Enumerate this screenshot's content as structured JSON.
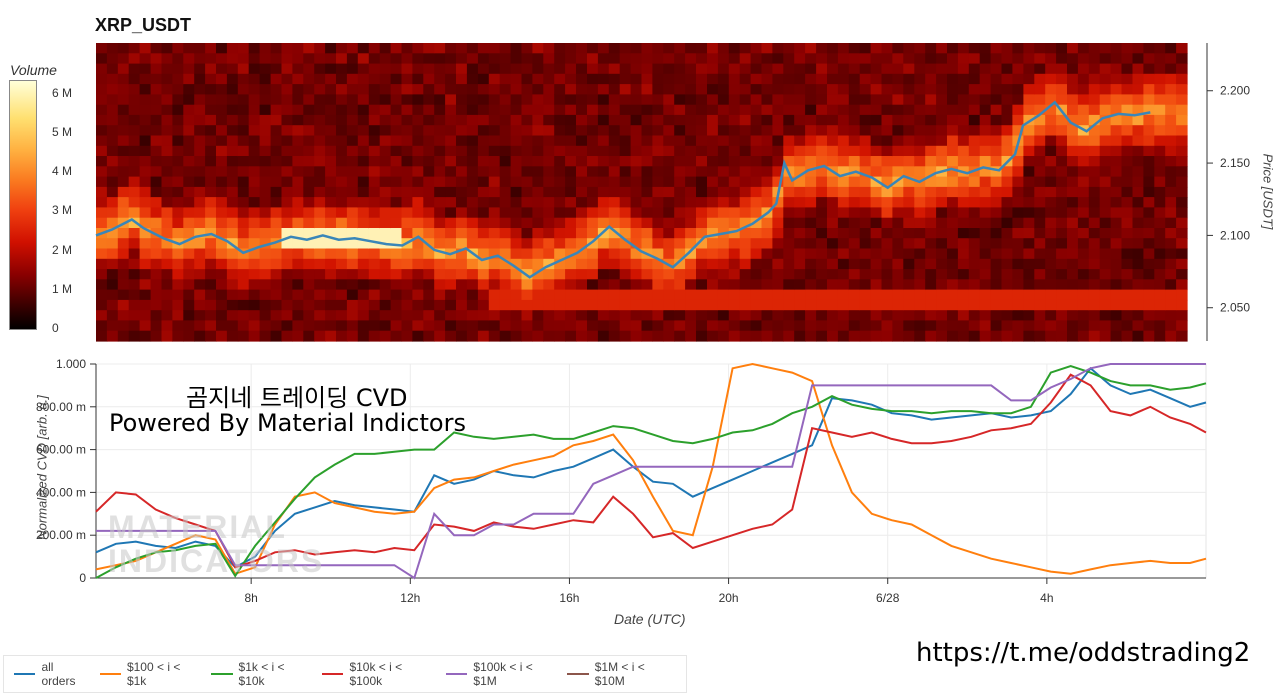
{
  "title": "XRP_USDT",
  "colorbar": {
    "label": "Volume",
    "ticks": [
      "0",
      "1 M",
      "2 M",
      "3 M",
      "4 M",
      "5 M",
      "6 M"
    ]
  },
  "overlay": {
    "line1": "곰지네 트레이딩 CVD",
    "line2": "Powered By Material Indictors"
  },
  "watermark": [
    "MATERIAL",
    "INDICATORS"
  ],
  "link": "https://t.me/oddstrading2",
  "chart_data": [
    {
      "type": "heatmap",
      "title": "XRP_USDT",
      "ylabel": "Price [USDT]",
      "colorbar_label": "Volume",
      "y_ticks": [
        "2.050",
        "2.100",
        "2.150",
        "2.200"
      ],
      "ylim": [
        2.027,
        2.233
      ],
      "price_series": {
        "x_hours": [
          4.1,
          4.5,
          5.0,
          5.3,
          5.8,
          6.2,
          6.6,
          7.0,
          7.4,
          7.8,
          8.2,
          8.6,
          9.0,
          9.4,
          9.8,
          10.2,
          10.6,
          11.0,
          11.4,
          11.8,
          12.2,
          12.6,
          13.0,
          13.4,
          13.8,
          14.2,
          14.6,
          15.0,
          15.4,
          15.8,
          16.2,
          16.6,
          17.0,
          17.4,
          17.8,
          18.2,
          18.6,
          19.0,
          19.4,
          19.8,
          20.2,
          20.6,
          21.0,
          21.2,
          21.4,
          21.6,
          22.0,
          22.4,
          22.8,
          23.2,
          23.6,
          24.0,
          24.4,
          24.8,
          25.2,
          25.6,
          26.0,
          26.4,
          26.8,
          27.2,
          27.4,
          27.8,
          28.2,
          28.6,
          29.0,
          29.4,
          29.8,
          30.2,
          30.6
        ],
        "price": [
          2.1,
          2.104,
          2.111,
          2.105,
          2.098,
          2.094,
          2.099,
          2.101,
          2.096,
          2.088,
          2.092,
          2.095,
          2.099,
          2.097,
          2.1,
          2.097,
          2.098,
          2.096,
          2.094,
          2.093,
          2.099,
          2.09,
          2.087,
          2.091,
          2.083,
          2.086,
          2.079,
          2.071,
          2.078,
          2.083,
          2.088,
          2.096,
          2.106,
          2.097,
          2.089,
          2.084,
          2.078,
          2.088,
          2.099,
          2.101,
          2.103,
          2.108,
          2.116,
          2.122,
          2.15,
          2.138,
          2.145,
          2.148,
          2.141,
          2.144,
          2.14,
          2.133,
          2.141,
          2.137,
          2.143,
          2.146,
          2.143,
          2.147,
          2.145,
          2.156,
          2.176,
          2.183,
          2.192,
          2.178,
          2.172,
          2.181,
          2.184,
          2.183,
          2.185
        ]
      }
    },
    {
      "type": "line",
      "xlabel": "Date (UTC)",
      "ylabel": "Normalized CVD [arb. u.]",
      "x_ticks": [
        "8h",
        "12h",
        "16h",
        "20h",
        "6/28",
        "4h"
      ],
      "y_ticks": [
        "0",
        "200.00 m",
        "400.00 m",
        "600.00 m",
        "800.00 m",
        "1.000"
      ],
      "ylim": [
        0,
        1.0
      ],
      "xlim_hours": [
        4.1,
        32.0
      ],
      "x_hours": [
        4.1,
        4.6,
        5.1,
        5.6,
        6.1,
        6.6,
        7.1,
        7.6,
        8.1,
        8.6,
        9.1,
        9.6,
        10.1,
        10.6,
        11.1,
        11.6,
        12.1,
        12.6,
        13.1,
        13.6,
        14.1,
        14.6,
        15.1,
        15.6,
        16.1,
        16.6,
        17.1,
        17.6,
        18.1,
        18.6,
        19.1,
        19.6,
        20.1,
        20.6,
        21.1,
        21.6,
        22.1,
        22.6,
        23.1,
        23.6,
        24.1,
        24.6,
        25.1,
        25.6,
        26.1,
        26.6,
        27.1,
        27.6,
        28.1,
        28.6,
        29.1,
        29.6,
        30.1,
        30.6,
        31.1,
        31.6,
        32.0
      ],
      "series": [
        {
          "name": "all orders",
          "color": "#1f77b4",
          "values": [
            0.12,
            0.16,
            0.17,
            0.15,
            0.14,
            0.17,
            0.15,
            0.05,
            0.1,
            0.22,
            0.3,
            0.33,
            0.36,
            0.34,
            0.33,
            0.32,
            0.31,
            0.48,
            0.44,
            0.46,
            0.5,
            0.48,
            0.47,
            0.5,
            0.52,
            0.56,
            0.6,
            0.52,
            0.45,
            0.44,
            0.38,
            0.42,
            0.46,
            0.5,
            0.54,
            0.58,
            0.62,
            0.84,
            0.83,
            0.81,
            0.77,
            0.76,
            0.74,
            0.75,
            0.76,
            0.77,
            0.75,
            0.76,
            0.78,
            0.86,
            0.98,
            0.9,
            0.86,
            0.88,
            0.84,
            0.8,
            0.82
          ]
        },
        {
          "name": "$100 < i < $1k",
          "color": "#ff7f0e",
          "values": [
            0.04,
            0.06,
            0.08,
            0.12,
            0.16,
            0.2,
            0.18,
            0.02,
            0.05,
            0.25,
            0.38,
            0.4,
            0.35,
            0.33,
            0.31,
            0.3,
            0.31,
            0.42,
            0.46,
            0.47,
            0.5,
            0.53,
            0.55,
            0.57,
            0.62,
            0.64,
            0.67,
            0.55,
            0.38,
            0.22,
            0.2,
            0.52,
            0.98,
            1.0,
            0.98,
            0.96,
            0.92,
            0.62,
            0.4,
            0.3,
            0.27,
            0.25,
            0.2,
            0.15,
            0.12,
            0.09,
            0.07,
            0.05,
            0.03,
            0.02,
            0.04,
            0.06,
            0.07,
            0.08,
            0.07,
            0.07,
            0.09
          ]
        },
        {
          "name": "$1k < i < $10k",
          "color": "#2ca02c",
          "values": [
            0.0,
            0.05,
            0.09,
            0.12,
            0.13,
            0.15,
            0.16,
            0.01,
            0.15,
            0.26,
            0.37,
            0.47,
            0.53,
            0.58,
            0.58,
            0.59,
            0.6,
            0.6,
            0.68,
            0.66,
            0.65,
            0.66,
            0.67,
            0.65,
            0.65,
            0.68,
            0.71,
            0.7,
            0.67,
            0.64,
            0.63,
            0.65,
            0.68,
            0.69,
            0.72,
            0.77,
            0.8,
            0.85,
            0.81,
            0.79,
            0.78,
            0.78,
            0.77,
            0.78,
            0.78,
            0.77,
            0.77,
            0.8,
            0.96,
            0.99,
            0.96,
            0.92,
            0.9,
            0.9,
            0.88,
            0.89,
            0.91
          ]
        },
        {
          "name": "$10k < i < $100k",
          "color": "#d62728",
          "values": [
            0.31,
            0.4,
            0.39,
            0.32,
            0.28,
            0.25,
            0.22,
            0.05,
            0.08,
            0.12,
            0.13,
            0.11,
            0.12,
            0.13,
            0.12,
            0.14,
            0.13,
            0.25,
            0.24,
            0.22,
            0.26,
            0.24,
            0.23,
            0.25,
            0.27,
            0.26,
            0.38,
            0.3,
            0.19,
            0.21,
            0.14,
            0.17,
            0.2,
            0.23,
            0.25,
            0.32,
            0.7,
            0.68,
            0.66,
            0.68,
            0.65,
            0.63,
            0.63,
            0.64,
            0.66,
            0.69,
            0.7,
            0.72,
            0.82,
            0.95,
            0.9,
            0.78,
            0.76,
            0.8,
            0.75,
            0.72,
            0.68
          ]
        },
        {
          "name": "$100k < i < $1M",
          "color": "#9467bd",
          "values": [
            0.22,
            0.22,
            0.22,
            0.22,
            0.22,
            0.22,
            0.22,
            0.06,
            0.06,
            0.06,
            0.06,
            0.06,
            0.06,
            0.06,
            0.06,
            0.06,
            0.0,
            0.3,
            0.2,
            0.2,
            0.25,
            0.25,
            0.3,
            0.3,
            0.3,
            0.44,
            0.48,
            0.52,
            0.52,
            0.52,
            0.52,
            0.52,
            0.52,
            0.52,
            0.52,
            0.52,
            0.9,
            0.9,
            0.9,
            0.9,
            0.9,
            0.9,
            0.9,
            0.9,
            0.9,
            0.9,
            0.83,
            0.83,
            0.89,
            0.93,
            0.98,
            1.0,
            1.0,
            1.0,
            1.0,
            1.0,
            1.0
          ]
        },
        {
          "name": "$1M < i < $10M",
          "color": "#8c564b",
          "values": []
        }
      ]
    }
  ]
}
